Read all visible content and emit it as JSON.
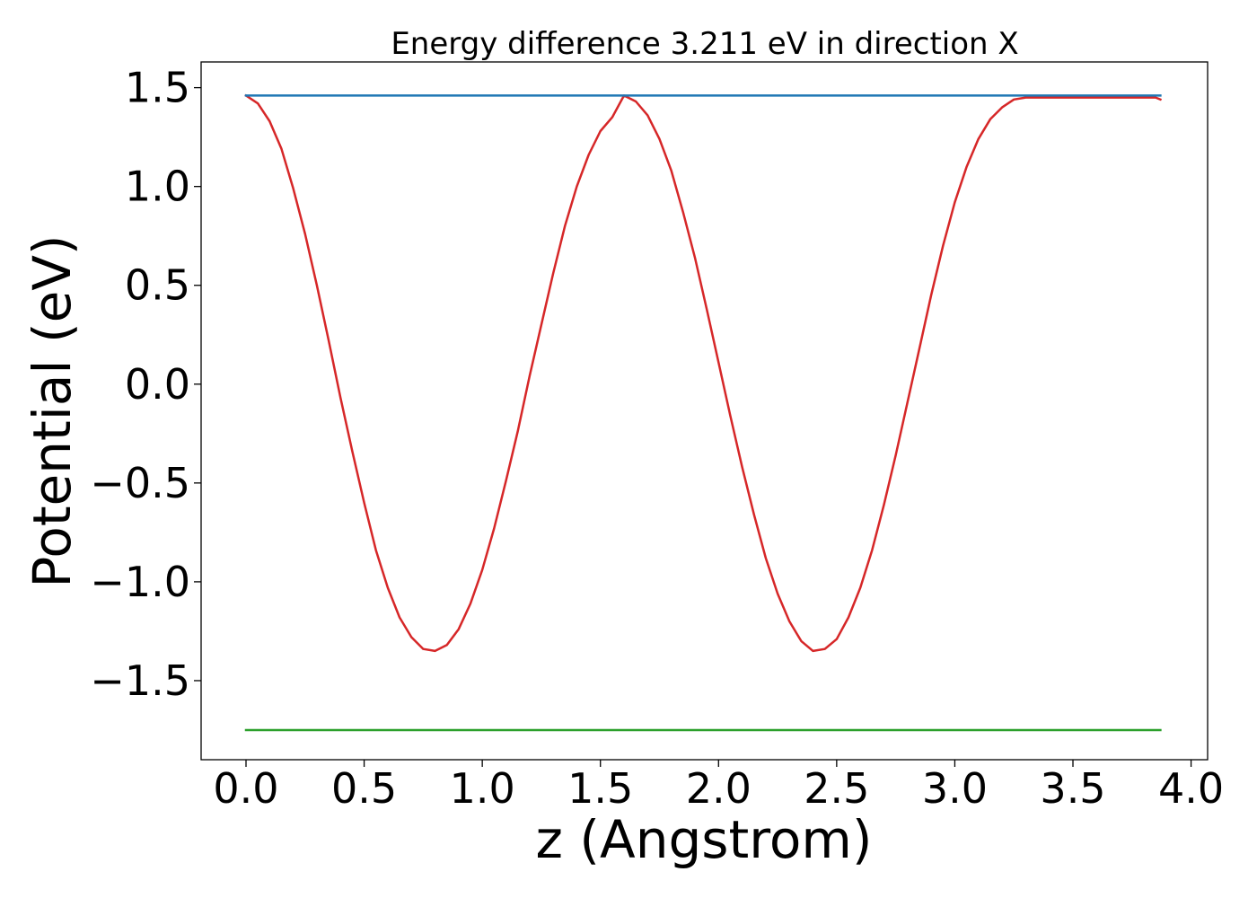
{
  "chart_data": {
    "type": "line",
    "title": "Energy difference 3.211 eV in direction X",
    "xlabel": "z (Angstrom)",
    "ylabel": "Potential (eV)",
    "xlim": [
      -0.19,
      4.07
    ],
    "ylim": [
      -1.9,
      1.63
    ],
    "xticks": [
      0.0,
      0.5,
      1.0,
      1.5,
      2.0,
      2.5,
      3.0,
      3.5,
      4.0
    ],
    "xtick_labels": [
      "0.0",
      "0.5",
      "1.0",
      "1.5",
      "2.0",
      "2.5",
      "3.0",
      "3.5",
      "4.0"
    ],
    "yticks": [
      1.5,
      1.0,
      0.5,
      0.0,
      -0.5,
      -1.0,
      -1.5
    ],
    "ytick_labels": [
      "1.5",
      "1.0",
      "0.5",
      "0.0",
      "−0.5",
      "−1.0",
      "−1.5"
    ],
    "grid": false,
    "series": [
      {
        "color": "#d62728",
        "x": [
          0.0,
          0.05,
          0.1,
          0.15,
          0.2,
          0.25,
          0.3,
          0.35,
          0.4,
          0.45,
          0.5,
          0.55,
          0.6,
          0.65,
          0.7,
          0.75,
          0.8,
          0.85,
          0.9,
          0.95,
          1.0,
          1.05,
          1.1,
          1.15,
          1.2,
          1.25,
          1.3,
          1.35,
          1.4,
          1.45,
          1.5,
          1.55,
          1.6,
          1.65,
          1.7,
          1.75,
          1.8,
          1.85,
          1.9,
          1.95,
          2.0,
          2.05,
          2.1,
          2.15,
          2.2,
          2.25,
          2.3,
          2.35,
          2.4,
          2.45,
          2.5,
          2.55,
          2.6,
          2.65,
          2.7,
          2.75,
          2.8,
          2.85,
          2.9,
          2.95,
          3.0,
          3.05,
          3.1,
          3.15,
          3.2,
          3.25,
          3.3,
          3.35,
          3.4,
          3.45,
          3.5,
          3.55,
          3.6,
          3.65,
          3.7,
          3.75,
          3.8,
          3.85,
          3.87
        ],
        "y": [
          1.46,
          1.42,
          1.33,
          1.19,
          0.99,
          0.76,
          0.5,
          0.22,
          -0.07,
          -0.34,
          -0.6,
          -0.84,
          -1.03,
          -1.18,
          -1.28,
          -1.34,
          -1.35,
          -1.32,
          -1.24,
          -1.11,
          -0.94,
          -0.73,
          -0.49,
          -0.24,
          0.04,
          0.3,
          0.56,
          0.8,
          1.0,
          1.16,
          1.28,
          1.35,
          1.46,
          1.43,
          1.36,
          1.24,
          1.08,
          0.87,
          0.64,
          0.38,
          0.11,
          -0.16,
          -0.42,
          -0.66,
          -0.88,
          -1.06,
          -1.2,
          -1.3,
          -1.35,
          -1.34,
          -1.29,
          -1.18,
          -1.03,
          -0.84,
          -0.61,
          -0.36,
          -0.09,
          0.18,
          0.45,
          0.7,
          0.92,
          1.1,
          1.24,
          1.34,
          1.4,
          1.44,
          1.45,
          1.45,
          1.45,
          1.45,
          1.45,
          1.45,
          1.45,
          1.45,
          1.45,
          1.45,
          1.45,
          1.45,
          1.44
        ]
      },
      {
        "color": "#1f77b4",
        "x": [
          0.0,
          3.87
        ],
        "y": [
          1.46,
          1.46
        ]
      },
      {
        "color": "#2ca02c",
        "x": [
          0.0,
          3.87
        ],
        "y": [
          -1.75,
          -1.75
        ]
      }
    ]
  }
}
